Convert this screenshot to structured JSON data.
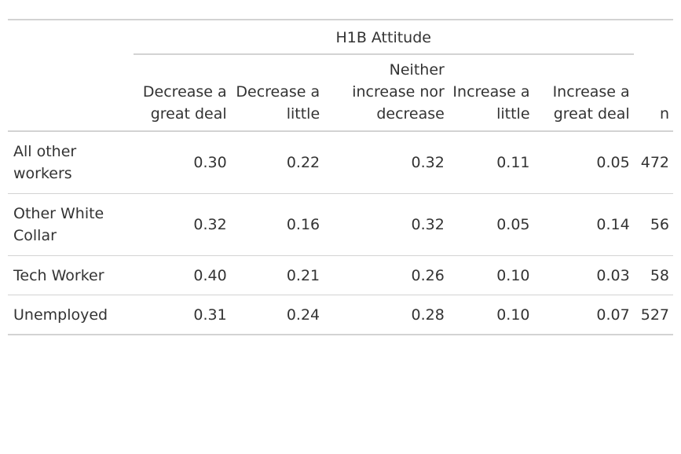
{
  "table": {
    "spanner": "H1B Attitude",
    "columns": [
      {
        "line1": "Decrease a",
        "line2": "great deal"
      },
      {
        "line1": "Decrease a",
        "line2": "little"
      },
      {
        "line0": "Neither",
        "line1": "increase nor",
        "line2": "decrease"
      },
      {
        "line1": "Increase a",
        "line2": "little"
      },
      {
        "line1": "Increase a",
        "line2": "great deal"
      }
    ],
    "n_header": "n",
    "rows": [
      {
        "label_line1": "All other",
        "label_line2": "workers",
        "values": [
          "0.30",
          "0.22",
          "0.32",
          "0.11",
          "0.05"
        ],
        "n": "472"
      },
      {
        "label_line1": "Other White",
        "label_line2": "Collar",
        "values": [
          "0.32",
          "0.16",
          "0.32",
          "0.05",
          "0.14"
        ],
        "n": "56"
      },
      {
        "label_line1": "Tech Worker",
        "values": [
          "0.40",
          "0.21",
          "0.26",
          "0.10",
          "0.03"
        ],
        "n": "58"
      },
      {
        "label_line1": "Unemployed",
        "values": [
          "0.31",
          "0.24",
          "0.28",
          "0.10",
          "0.07"
        ],
        "n": "527"
      }
    ]
  }
}
